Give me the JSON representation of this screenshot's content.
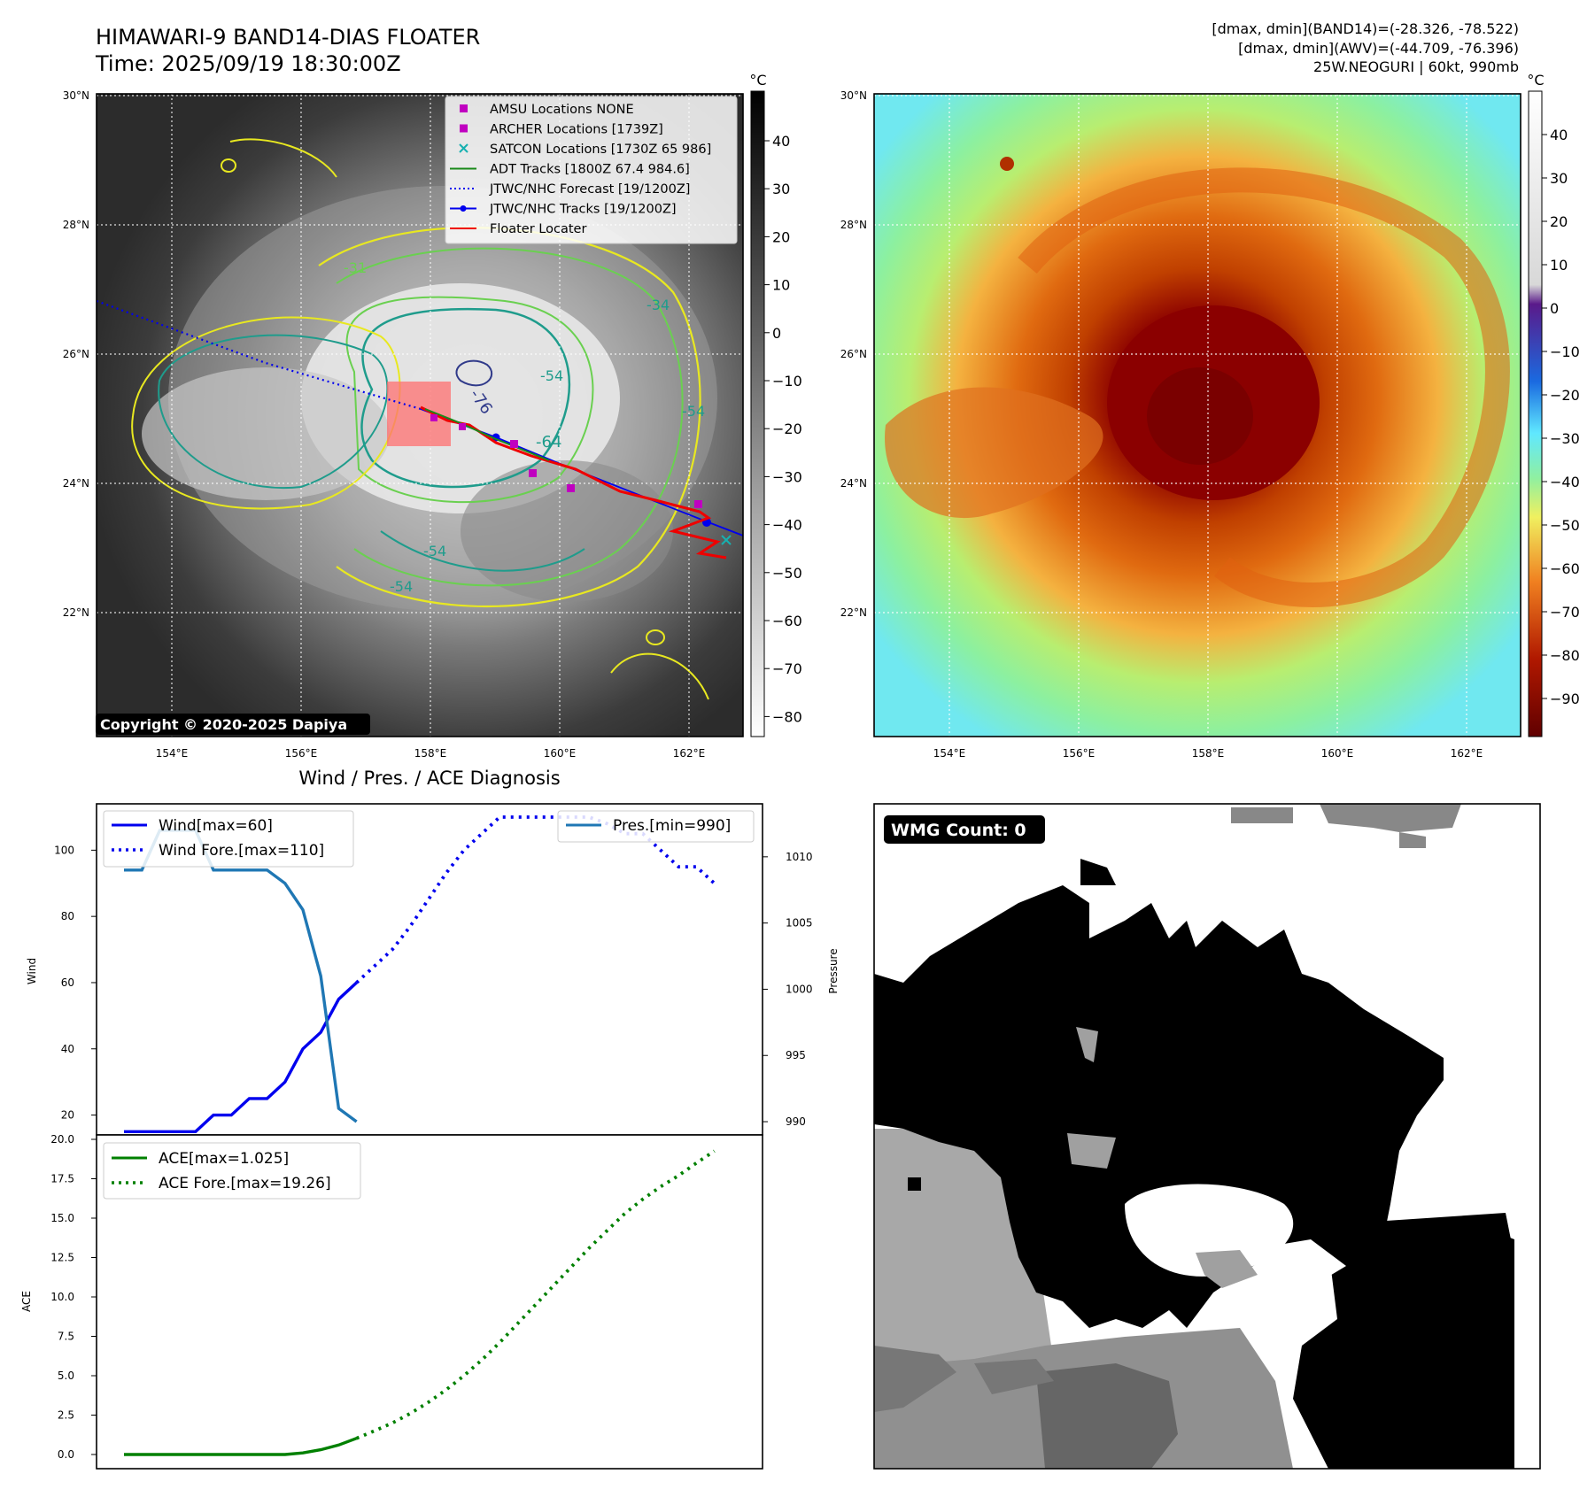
{
  "header": {
    "title_line1": "HIMAWARI-9 BAND14-DIAS FLOATER",
    "title_line2": "Time: 2025/09/19 18:30:00Z",
    "stats_line1": "[dmax, dmin](BAND14)=(-28.326, -78.522)",
    "stats_line2": "[dmax, dmin](AWV)=(-44.709, -76.396)",
    "stats_line3": "25W.NEOGURI | 60kt, 990mb"
  },
  "map": {
    "lat_labels": [
      "30°N",
      "28°N",
      "26°N",
      "24°N",
      "22°N"
    ],
    "lon_labels": [
      "154°E",
      "156°E",
      "158°E",
      "160°E",
      "162°E"
    ],
    "copyright": "Copyright © 2020-2025 Dapiya",
    "contour_labels": [
      "-31",
      "-34",
      "-54",
      "-64",
      "-76",
      "-54",
      "-54",
      "-54"
    ],
    "legend": [
      {
        "label": "AMSU Locations NONE",
        "marker": "square",
        "color": "#c000c0"
      },
      {
        "label": "ARCHER Locations [1739Z]",
        "marker": "square",
        "color": "#c000c0"
      },
      {
        "label": "SATCON Locations [1730Z 65 986]",
        "marker": "x",
        "color": "#17b0b0"
      },
      {
        "label": "ADT Tracks [1800Z 67.4 984.6]",
        "marker": "line",
        "color": "#1a8a1a"
      },
      {
        "label": "JTWC/NHC Forecast [19/1200Z]",
        "marker": "dotted",
        "color": "#0000ee"
      },
      {
        "label": "JTWC/NHC Tracks [19/1200Z]",
        "marker": "line-dot",
        "color": "#0000ee"
      },
      {
        "label": "Floater Locater",
        "marker": "line",
        "color": "#ee0000"
      }
    ]
  },
  "colorbars": {
    "unit": "°C",
    "band14_ticks": [
      "40",
      "30",
      "20",
      "10",
      "0",
      "−10",
      "−20",
      "−30",
      "−40",
      "−50",
      "−60",
      "−70",
      "−80"
    ],
    "awv_ticks": [
      "40",
      "30",
      "20",
      "10",
      "0",
      "−10",
      "−20",
      "−30",
      "−40",
      "−50",
      "−60",
      "−70",
      "−80",
      "−90"
    ]
  },
  "diag": {
    "title": "Wind / Pres. / ACE Diagnosis",
    "wind_ylabel": "Wind",
    "pres_ylabel": "Pressure",
    "ace_ylabel": "ACE",
    "wind_ticks": [
      "100",
      "80",
      "60",
      "40",
      "20"
    ],
    "pres_ticks": [
      "1010",
      "1005",
      "1000",
      "995",
      "990"
    ],
    "ace_ticks": [
      "20.0",
      "17.5",
      "15.0",
      "12.5",
      "10.0",
      "7.5",
      "5.0",
      "2.5",
      "0.0"
    ]
  },
  "wmg": {
    "label": "WMG Count: 0"
  },
  "colors": {
    "wind": "#0000ee",
    "pressure": "#1f77b4",
    "ace": "#008000",
    "track": "#ee0000"
  },
  "chart_data": [
    {
      "type": "line",
      "name": "wind",
      "ylim": [
        14,
        114
      ],
      "series": [
        {
          "name": "Wind[max=60]",
          "style": "solid",
          "x": [
            0,
            1,
            2,
            3,
            4,
            5,
            6,
            7,
            8,
            9,
            10,
            11,
            12,
            13
          ],
          "values": [
            15,
            15,
            15,
            15,
            15,
            20,
            20,
            25,
            25,
            30,
            40,
            45,
            55,
            60
          ]
        },
        {
          "name": "Wind Fore.[max=110]",
          "style": "dotted",
          "x": [
            13,
            14,
            15,
            16,
            17,
            18,
            19,
            20,
            21,
            22,
            23,
            24,
            25,
            26,
            27,
            28,
            29,
            30,
            31,
            32,
            33
          ],
          "values": [
            60,
            65,
            70,
            77,
            85,
            93,
            100,
            105,
            110,
            110,
            110,
            110,
            110,
            110,
            108,
            105,
            105,
            100,
            95,
            95,
            90
          ]
        }
      ]
    },
    {
      "type": "line",
      "name": "pressure",
      "ylim": [
        989,
        1014
      ],
      "series": [
        {
          "name": "Pres.[min=990]",
          "style": "solid",
          "x": [
            0,
            1,
            2,
            3,
            4,
            5,
            6,
            7,
            8,
            9,
            10,
            11,
            12,
            13
          ],
          "values": [
            1009,
            1009,
            1012,
            1012,
            1012,
            1009,
            1009,
            1009,
            1009,
            1008,
            1006,
            1001,
            991,
            990
          ]
        }
      ]
    },
    {
      "type": "line",
      "name": "ace",
      "ylim": [
        -0.9,
        20
      ],
      "series": [
        {
          "name": "ACE[max=1.025]",
          "style": "solid",
          "x": [
            0,
            1,
            2,
            3,
            4,
            5,
            6,
            7,
            8,
            9,
            10,
            11,
            12,
            13
          ],
          "values": [
            0,
            0,
            0,
            0,
            0,
            0,
            0,
            0,
            0,
            0,
            0.1,
            0.3,
            0.6,
            1.025
          ]
        },
        {
          "name": "ACE Fore.[max=19.26]",
          "style": "dotted",
          "x": [
            13,
            14,
            15,
            16,
            17,
            18,
            19,
            20,
            21,
            22,
            23,
            24,
            25,
            26,
            27,
            28,
            29,
            30,
            31,
            32,
            33
          ],
          "values": [
            1.025,
            1.5,
            2.0,
            2.6,
            3.3,
            4.1,
            5.0,
            6.0,
            7.1,
            8.3,
            9.5,
            10.7,
            11.9,
            13.1,
            14.2,
            15.3,
            16.2,
            17.0,
            17.7,
            18.5,
            19.26
          ]
        }
      ]
    }
  ]
}
